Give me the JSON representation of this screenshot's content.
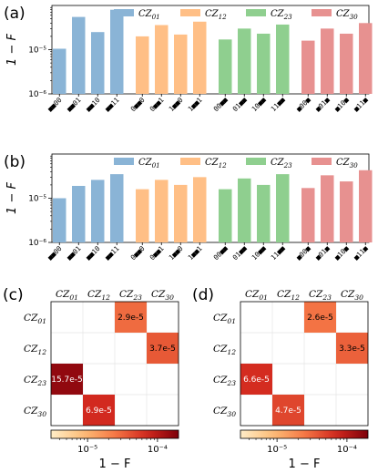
{
  "chart_data": [
    {
      "id": "a",
      "type": "bar",
      "panel_label": "(a)",
      "ylabel": "1 − F",
      "yscale": "log",
      "ylim": [
        1e-06,
        0.0001
      ],
      "ytick_labels": [
        "10⁻⁵",
        "10⁻⁶"
      ],
      "legend_position": "top",
      "series": [
        {
          "name": "CZ01",
          "color": "#8ab4d6",
          "categories": [
            "■■00",
            "■■01",
            "■■10",
            "■■11"
          ],
          "values": [
            1.05e-05,
            5.5e-05,
            2.5e-05,
            8e-05
          ]
        },
        {
          "name": "CZ12",
          "color": "#ffbf86",
          "categories": [
            "0■■0",
            "0■■1",
            "1■■0",
            "1■■1"
          ],
          "values": [
            2e-05,
            3.6e-05,
            2.2e-05,
            4.3e-05
          ]
        },
        {
          "name": "CZ23",
          "color": "#8fcf8f",
          "categories": [
            "00■■",
            "01■■",
            "10■■",
            "11■■"
          ],
          "values": [
            1.7e-05,
            3e-05,
            2.3e-05,
            3.7e-05
          ]
        },
        {
          "name": "CZ30",
          "color": "#e79190",
          "categories": [
            "■00■",
            "■01■",
            "■10■",
            "■11■"
          ],
          "values": [
            1.6e-05,
            3e-05,
            2.3e-05,
            4e-05
          ]
        }
      ]
    },
    {
      "id": "b",
      "type": "bar",
      "panel_label": "(b)",
      "ylabel": "1 − F",
      "yscale": "log",
      "ylim": [
        1e-06,
        0.0001
      ],
      "ytick_labels": [
        "10⁻⁵",
        "10⁻⁶"
      ],
      "legend_position": "top",
      "series": [
        {
          "name": "CZ01",
          "color": "#8ab4d6",
          "categories": [
            "■■00",
            "■■01",
            "■■10",
            "■■11"
          ],
          "values": [
            1e-05,
            1.9e-05,
            2.6e-05,
            3.5e-05
          ]
        },
        {
          "name": "CZ12",
          "color": "#ffbf86",
          "categories": [
            "0■■0",
            "0■■1",
            "1■■0",
            "1■■1"
          ],
          "values": [
            1.6e-05,
            2.6e-05,
            2e-05,
            3e-05
          ]
        },
        {
          "name": "CZ23",
          "color": "#8fcf8f",
          "categories": [
            "00■■",
            "01■■",
            "10■■",
            "11■■"
          ],
          "values": [
            1.6e-05,
            2.8e-05,
            2e-05,
            3.5e-05
          ]
        },
        {
          "name": "CZ30",
          "color": "#e79190",
          "categories": [
            "■00■",
            "■01■",
            "■10■",
            "■11■"
          ],
          "values": [
            1.7e-05,
            3.3e-05,
            2.4e-05,
            4.3e-05
          ]
        }
      ]
    },
    {
      "id": "c",
      "type": "heatmap",
      "panel_label": "(c)",
      "x_labels": [
        "CZ01",
        "CZ12",
        "CZ23",
        "CZ30"
      ],
      "y_labels": [
        "CZ01",
        "CZ12",
        "CZ23",
        "CZ30"
      ],
      "cells": [
        {
          "row": 0,
          "col": 2,
          "value": 2.9e-05,
          "label": "2.9e-5"
        },
        {
          "row": 1,
          "col": 3,
          "value": 3.7e-05,
          "label": "3.7e-5"
        },
        {
          "row": 2,
          "col": 0,
          "value": 0.000157,
          "label": "15.7e-5"
        },
        {
          "row": 3,
          "col": 1,
          "value": 6.9e-05,
          "label": "6.9e-5"
        }
      ],
      "colorbar": {
        "label": "1 − F",
        "scale": "log",
        "range": [
          3e-06,
          0.0002
        ],
        "tick_labels": [
          "10⁻⁵",
          "10⁻⁴"
        ]
      }
    },
    {
      "id": "d",
      "type": "heatmap",
      "panel_label": "(d)",
      "x_labels": [
        "CZ01",
        "CZ12",
        "CZ23",
        "CZ30"
      ],
      "y_labels": [
        "CZ01",
        "CZ12",
        "CZ23",
        "CZ30"
      ],
      "cells": [
        {
          "row": 0,
          "col": 2,
          "value": 2.6e-05,
          "label": "2.6e-5"
        },
        {
          "row": 1,
          "col": 3,
          "value": 3.3e-05,
          "label": "3.3e-5"
        },
        {
          "row": 2,
          "col": 0,
          "value": 6.6e-05,
          "label": "6.6e-5"
        },
        {
          "row": 3,
          "col": 1,
          "value": 4.7e-05,
          "label": "4.7e-5"
        }
      ],
      "colorbar": {
        "label": "1 − F",
        "scale": "log",
        "range": [
          3e-06,
          0.0002
        ],
        "tick_labels": [
          "10⁻⁵",
          "10⁻⁴"
        ]
      }
    }
  ]
}
